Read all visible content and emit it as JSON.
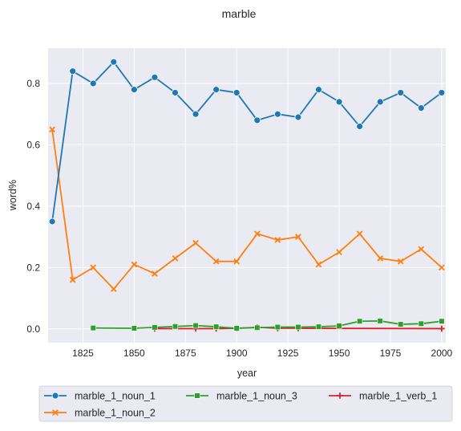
{
  "chart_data": {
    "type": "line",
    "title": "marble",
    "xlabel": "year",
    "ylabel": "word%",
    "xlim": [
      1808,
      2002
    ],
    "ylim": [
      -0.045,
      0.915
    ],
    "xticks": [
      1825,
      1850,
      1875,
      1900,
      1925,
      1950,
      1975,
      2000
    ],
    "yticks": [
      0.0,
      0.2,
      0.4,
      0.6,
      0.8
    ],
    "ytick_labels": [
      "0.0",
      "0.2",
      "0.4",
      "0.6",
      "0.8"
    ],
    "grid": true,
    "legend": "below",
    "series": [
      {
        "name": "marble_1_noun_1",
        "color": "#1f77b4",
        "marker": "circle",
        "x": [
          1810,
          1820,
          1830,
          1840,
          1850,
          1860,
          1870,
          1880,
          1890,
          1900,
          1910,
          1920,
          1930,
          1940,
          1950,
          1960,
          1970,
          1980,
          1990,
          2000
        ],
        "values": [
          0.35,
          0.84,
          0.8,
          0.87,
          0.78,
          0.82,
          0.77,
          0.7,
          0.78,
          0.77,
          0.68,
          0.7,
          0.69,
          0.78,
          0.74,
          0.66,
          0.74,
          0.77,
          0.72,
          0.77
        ]
      },
      {
        "name": "marble_1_noun_2",
        "color": "#ff7f0e",
        "marker": "x",
        "x": [
          1810,
          1820,
          1830,
          1840,
          1850,
          1860,
          1870,
          1880,
          1890,
          1900,
          1910,
          1920,
          1930,
          1940,
          1950,
          1960,
          1970,
          1980,
          1990,
          2000
        ],
        "values": [
          0.65,
          0.16,
          0.2,
          0.13,
          0.21,
          0.18,
          0.23,
          0.28,
          0.22,
          0.22,
          0.31,
          0.29,
          0.3,
          0.21,
          0.25,
          0.31,
          0.23,
          0.22,
          0.26,
          0.2
        ]
      },
      {
        "name": "marble_1_noun_3",
        "color": "#2ca02c",
        "marker": "square",
        "x": [
          1830,
          1850,
          1860,
          1870,
          1880,
          1890,
          1900,
          1910,
          1920,
          1930,
          1940,
          1950,
          1960,
          1970,
          1980,
          1990,
          2000
        ],
        "values": [
          0.003,
          0.002,
          0.005,
          0.008,
          0.011,
          0.007,
          0.002,
          0.004,
          0.006,
          0.006,
          0.007,
          0.01,
          0.025,
          0.026,
          0.015,
          0.017,
          0.025
        ]
      },
      {
        "name": "marble_1_verb_1",
        "color": "#d62728",
        "marker": "plus",
        "x": [
          1860,
          1880,
          1890,
          1900,
          1910,
          1920,
          1930,
          2000
        ],
        "values": [
          0.001,
          0.001,
          0.001,
          0.002,
          0.005,
          0.002,
          0.002,
          0.001
        ]
      }
    ]
  }
}
